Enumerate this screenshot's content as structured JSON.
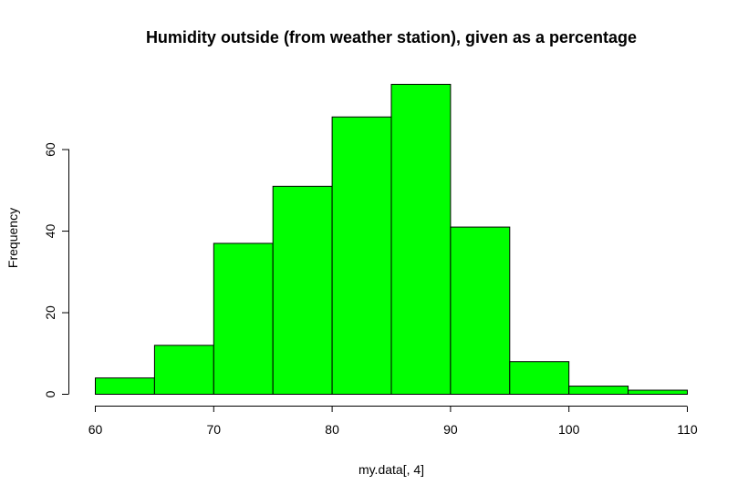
{
  "chart_data": {
    "type": "bar",
    "title": "Humidity outside (from weather station), given as a percentage",
    "xlabel": "my.data[, 4]",
    "ylabel": "Frequency",
    "bin_edges": [
      60,
      65,
      70,
      75,
      80,
      85,
      90,
      95,
      100,
      105,
      110
    ],
    "values": [
      4,
      12,
      37,
      51,
      68,
      76,
      41,
      8,
      2,
      1
    ],
    "xlim": [
      60,
      110
    ],
    "ylim": [
      0,
      76
    ],
    "x_ticks": [
      60,
      70,
      80,
      90,
      100,
      110
    ],
    "y_ticks": [
      0,
      20,
      40,
      60
    ],
    "bar_color": "#00ff00",
    "grid": false
  }
}
